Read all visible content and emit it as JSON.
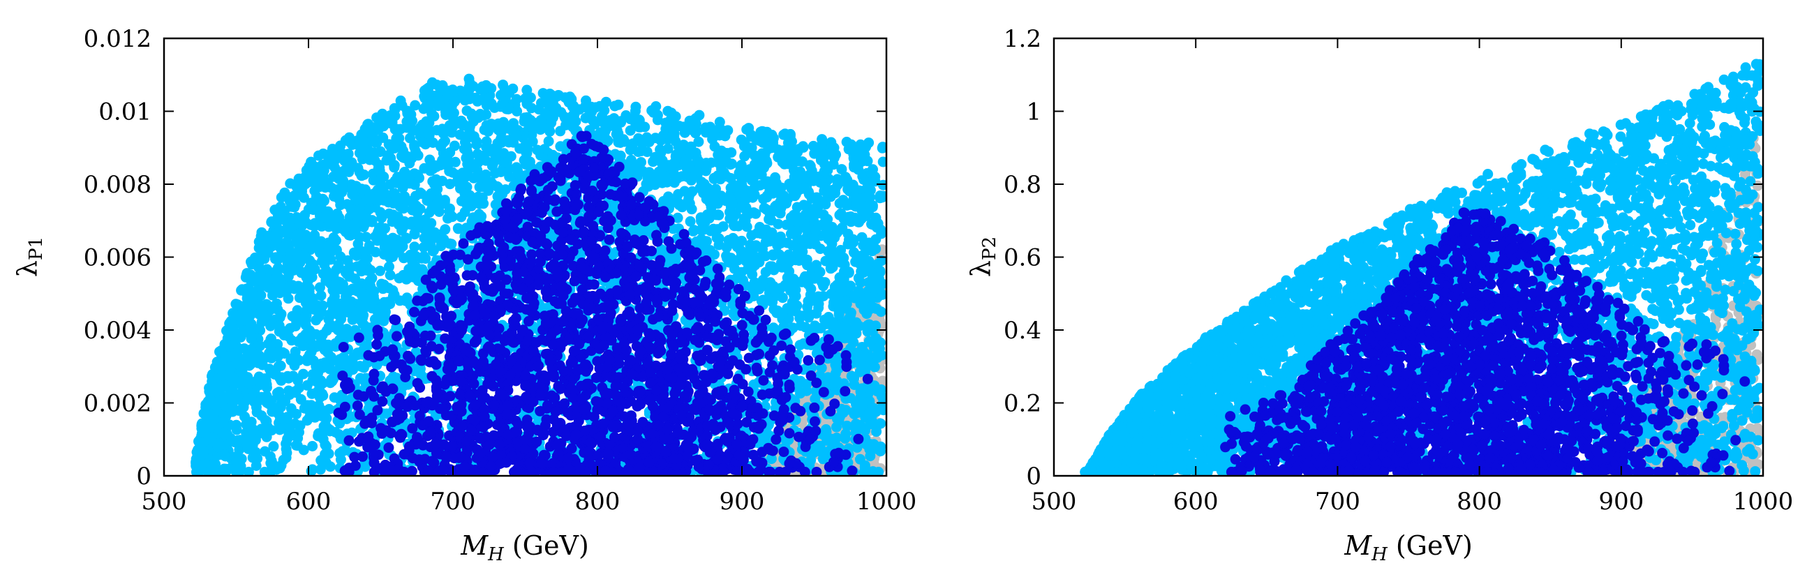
{
  "colors": {
    "excluded": "#c0c0c0",
    "allowed": "#00bfff",
    "preferred": "#0a0adc"
  },
  "chart_data": [
    {
      "type": "scatter",
      "xlabel": "M_H (GeV)",
      "xlabel_main": "M",
      "xlabel_sub": "H",
      "xlabel_unit": "(GeV)",
      "ylabel": "λ_P1",
      "ylabel_main": "λ",
      "ylabel_sub": "P1",
      "xlim": [
        500,
        1000
      ],
      "ylim": [
        0,
        0.012
      ],
      "x_ticks": [
        500,
        600,
        700,
        800,
        900,
        1000
      ],
      "x_tick_labels": [
        "500",
        "600",
        "700",
        "800",
        "900",
        "1000"
      ],
      "y_ticks": [
        0,
        0.002,
        0.004,
        0.006,
        0.008,
        0.01,
        0.012
      ],
      "y_tick_labels": [
        "0",
        "0.002",
        "0.004",
        "0.006",
        "0.008",
        "0.01",
        "0.012"
      ],
      "x_range_points": [
        522,
        998
      ],
      "regions": {
        "gray": {
          "x_from": 910,
          "x_to": 998,
          "y_max": [
            [
              910,
              0.0004
            ],
            [
              960,
              0.0035
            ],
            [
              998,
              0.0065
            ]
          ]
        },
        "light": {
          "upper": [
            [
              522,
              0.0005
            ],
            [
              530,
              0.0024
            ],
            [
              545,
              0.0042
            ],
            [
              560,
              0.006
            ],
            [
              575,
              0.0075
            ],
            [
              600,
              0.0086
            ],
            [
              630,
              0.0094
            ],
            [
              660,
              0.0102
            ],
            [
              690,
              0.0109
            ],
            [
              720,
              0.0109
            ],
            [
              750,
              0.0106
            ],
            [
              800,
              0.0103
            ],
            [
              850,
              0.0101
            ],
            [
              900,
              0.0096
            ],
            [
              950,
              0.0093
            ],
            [
              998,
              0.0091
            ]
          ]
        },
        "dark": {
          "x_from": 620,
          "x_to": 995,
          "y_max": 0.0095,
          "density_center": 790
        }
      },
      "point_counts": {
        "gray": 650,
        "light": 5200,
        "dark": 2400
      }
    },
    {
      "type": "scatter",
      "xlabel": "M_H (GeV)",
      "xlabel_main": "M",
      "xlabel_sub": "H",
      "xlabel_unit": "(GeV)",
      "ylabel": "λ_P2",
      "ylabel_main": "λ",
      "ylabel_sub": "P2",
      "xlim": [
        500,
        1000
      ],
      "ylim": [
        0,
        1.2
      ],
      "x_ticks": [
        500,
        600,
        700,
        800,
        900,
        1000
      ],
      "x_tick_labels": [
        "500",
        "600",
        "700",
        "800",
        "900",
        "1000"
      ],
      "y_ticks": [
        0,
        0.2,
        0.4,
        0.6,
        0.8,
        1.0,
        1.2
      ],
      "y_tick_labels": [
        "0",
        "0.2",
        "0.4",
        "0.6",
        "0.8",
        "1",
        "1.2"
      ],
      "x_range_points": [
        522,
        998
      ],
      "regions": {
        "gray": {
          "x_from": 880,
          "x_to": 998,
          "y_max": [
            [
              880,
              0.05
            ],
            [
              940,
              0.35
            ],
            [
              998,
              1.0
            ]
          ]
        },
        "light": {
          "upper": [
            [
              522,
              0.0
            ],
            [
              540,
              0.12
            ],
            [
              560,
              0.22
            ],
            [
              600,
              0.36
            ],
            [
              650,
              0.5
            ],
            [
              700,
              0.63
            ],
            [
              750,
              0.73
            ],
            [
              800,
              0.82
            ],
            [
              850,
              0.9
            ],
            [
              900,
              0.97
            ],
            [
              950,
              1.05
            ],
            [
              998,
              1.14
            ]
          ]
        },
        "dark": {
          "x_from": 620,
          "x_to": 995,
          "y_max": 0.82,
          "density_center": 790
        }
      },
      "point_counts": {
        "gray": 650,
        "light": 5200,
        "dark": 2400
      }
    }
  ]
}
